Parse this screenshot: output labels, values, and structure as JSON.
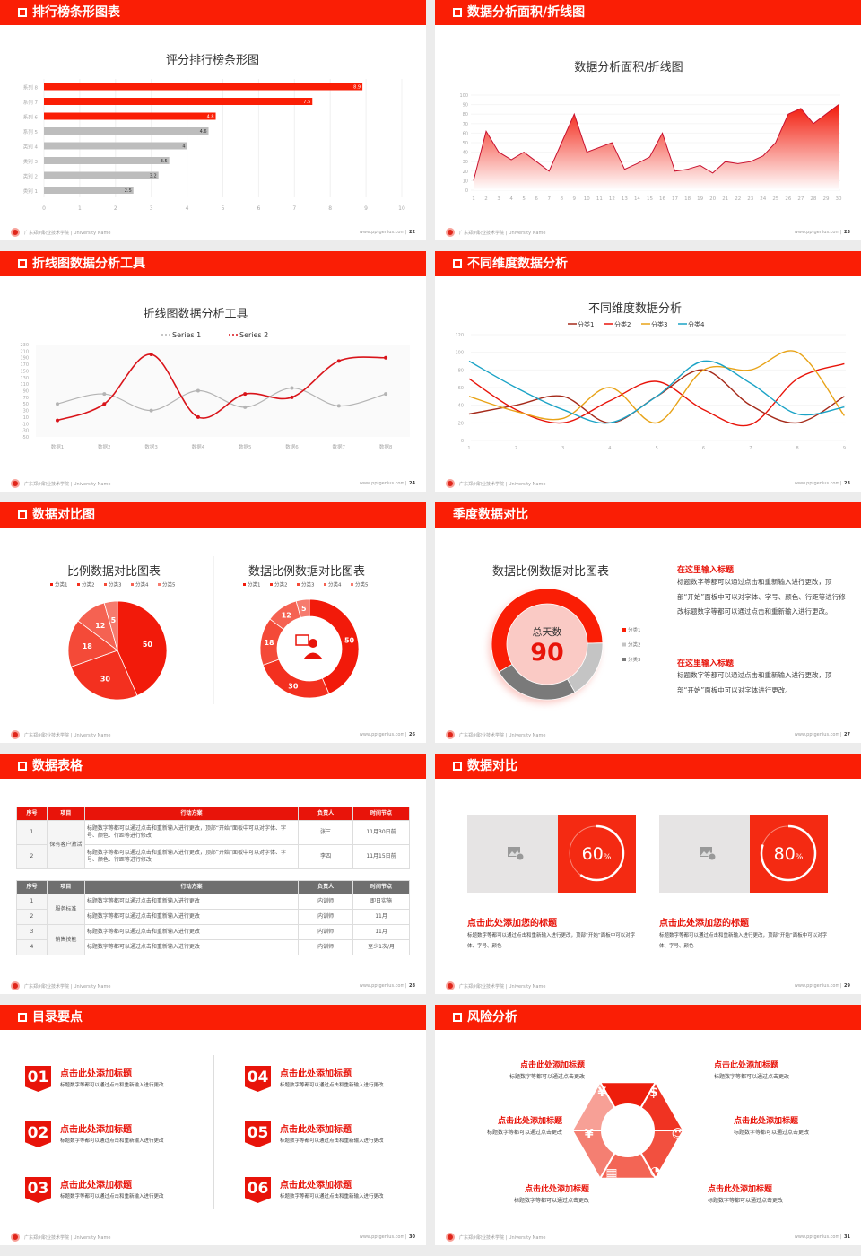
{
  "colors": {
    "accent": "#fa1e05",
    "grey": "#bdbdbd",
    "dark_grey": "#7a7a7a"
  },
  "footer": {
    "school": "广东郑州职业技术学院 | University Name",
    "site": "www.pptgenius.com"
  },
  "slides": [
    {
      "header": "排行榜条形图表",
      "page": "22"
    },
    {
      "header": "数据分析面积/折线图",
      "page": "23"
    },
    {
      "header": "折线图数据分析工具",
      "page": "24"
    },
    {
      "header": "不同维度数据分析",
      "page": "23"
    },
    {
      "header": "数据对比图",
      "page": "26"
    },
    {
      "header": "季度数据对比",
      "page": "27",
      "blocks": [
        {
          "title": "在这里输入标题",
          "text": "标题数字等都可以通过点击和重新输入进行更改，顶部“开始”面板中可以对字体、字号、颜色、行距等进行修改标题数字等都可以通过点击和重新输入进行更改。"
        },
        {
          "title": "在这里输入标题",
          "text": "标题数字等都可以通过点击和重新输入进行更改，顶部“开始”面板中可以对字体进行更改。"
        }
      ]
    },
    {
      "header": "数据表格",
      "page": "28",
      "table1": {
        "columns": [
          "序号",
          "项目",
          "行动方案",
          "负责人",
          "时间节点"
        ],
        "group": "保有客户激活",
        "rows": [
          [
            "1",
            "标题数字等都可以通过点击和重新输入进行更改，顶部“开始”面板中可以对字体、字号、颜色、行距等进行修改",
            "张三",
            "11月30日前"
          ],
          [
            "2",
            "标题数字等都可以通过点击和重新输入进行更改，顶部“开始”面板中可以对字体、字号、颜色、行距等进行修改",
            "李四",
            "11月15日前"
          ]
        ]
      },
      "table2": {
        "columns": [
          "序号",
          "项目",
          "行动方案",
          "负责人",
          "时间节点"
        ],
        "groups": [
          "服务标准",
          "销售技能"
        ],
        "rows": [
          [
            "1",
            "标题数字等都可以通过点击和重新输入进行更改",
            "内训师",
            "即日实施"
          ],
          [
            "2",
            "标题数字等都可以通过点击和重新输入进行更改",
            "内训师",
            "11月"
          ],
          [
            "3",
            "标题数字等都可以通过点击和重新输入进行更改",
            "内训师",
            "11月"
          ],
          [
            "4",
            "标题数字等都可以通过点击和重新输入进行更改",
            "内训师",
            "至少1次/月"
          ]
        ]
      }
    },
    {
      "header": "数据对比",
      "page": "29",
      "cards": [
        {
          "percent": 60,
          "unit": "%",
          "title": "点击此处添加您的标题",
          "text": "标题数字等都可以通过点击和重新输入进行更改，顶部“开始”面板中可以对字体、字号、颜色",
          "icon": "image-add-icon"
        },
        {
          "percent": 80,
          "unit": "%",
          "title": "点击此处添加您的标题",
          "text": "标题数字等都可以通过点击和重新输入进行更改，顶部“开始”面板中可以对字体、字号、颜色",
          "icon": "image-add-icon"
        }
      ]
    },
    {
      "header": "目录要点",
      "page": "30",
      "items": [
        {
          "num": "01",
          "title": "点击此处添加标题",
          "text": "标题数字等都可以通过点击和重新输入进行更改"
        },
        {
          "num": "02",
          "title": "点击此处添加标题",
          "text": "标题数字等都可以通过点击和重新输入进行更改"
        },
        {
          "num": "03",
          "title": "点击此处添加标题",
          "text": "标题数字等都可以通过点击和重新输入进行更改"
        },
        {
          "num": "04",
          "title": "点击此处添加标题",
          "text": "标题数字等都可以通过点击和重新输入进行更改"
        },
        {
          "num": "05",
          "title": "点击此处添加标题",
          "text": "标题数字等都可以通过点击和重新输入进行更改"
        },
        {
          "num": "06",
          "title": "点击此处添加标题",
          "text": "标题数字等都可以通过点击和重新输入进行更改"
        }
      ]
    },
    {
      "header": "风险分析",
      "page": "31",
      "items": [
        {
          "title": "点击此处添加标题",
          "text": "标题数字等都可以通过点击更改",
          "icon": "money-bag-icon"
        },
        {
          "title": "点击此处添加标题",
          "text": "标题数字等都可以通过点击更改",
          "icon": "coins-icon"
        },
        {
          "title": "点击此处添加标题",
          "text": "标题数字等都可以通过点击更改",
          "icon": "yen-hand-icon"
        },
        {
          "title": "点击此处添加标题",
          "text": "标题数字等都可以通过点击更改",
          "icon": "people-icon"
        },
        {
          "title": "点击此处添加标题",
          "text": "标题数字等都可以通过点击更改",
          "icon": "building-icon"
        },
        {
          "title": "点击此处添加标题",
          "text": "标题数字等都可以通过点击更改",
          "icon": "pie-chart-icon"
        }
      ]
    }
  ],
  "chart_data": [
    {
      "type": "bar",
      "orientation": "horizontal",
      "title": "评分排行榜条形图",
      "categories": [
        "类别 1",
        "类别 2",
        "类别 3",
        "类别 4",
        "系列 5",
        "系列 6",
        "系列 7",
        "系列 8"
      ],
      "values": [
        2.5,
        3.2,
        3.5,
        4,
        4.6,
        4.8,
        7.5,
        8.9
      ],
      "bar_colors": [
        "#bdbdbd",
        "#bdbdbd",
        "#bdbdbd",
        "#bdbdbd",
        "#bdbdbd",
        "#fa1e05",
        "#fa1e05",
        "#fa1e05"
      ],
      "xlim": [
        0,
        10
      ],
      "xticks": [
        0,
        1,
        2,
        3,
        4,
        5,
        6,
        7,
        8,
        9,
        10
      ],
      "grid": true
    },
    {
      "type": "area",
      "title": "数据分析面积/折线图",
      "x": [
        1,
        2,
        3,
        4,
        5,
        6,
        7,
        8,
        9,
        10,
        11,
        12,
        13,
        14,
        15,
        16,
        17,
        18,
        19,
        20,
        21,
        22,
        23,
        24,
        25,
        26,
        27,
        28,
        29,
        30
      ],
      "values": [
        10,
        62,
        40,
        32,
        40,
        30,
        20,
        50,
        80,
        40,
        45,
        50,
        22,
        28,
        35,
        60,
        20,
        22,
        26,
        18,
        30,
        28,
        30,
        36,
        50,
        80,
        86,
        70,
        80,
        90
      ],
      "ylim": [
        0,
        100
      ],
      "yticks": [
        0,
        10,
        20,
        30,
        40,
        50,
        60,
        70,
        80,
        90,
        100
      ],
      "color": "#e8140a",
      "grid": true
    },
    {
      "type": "line",
      "smooth": true,
      "title": "折线图数据分析工具",
      "categories": [
        "数据1",
        "数据2",
        "数据3",
        "数据4",
        "数据5",
        "数据6",
        "数据7",
        "数据8"
      ],
      "series": [
        {
          "name": "Series 1",
          "values": [
            50,
            80,
            30,
            90,
            40,
            98,
            44,
            80
          ],
          "color": "#b4b4b4"
        },
        {
          "name": "Series 2",
          "values": [
            0,
            50,
            200,
            10,
            80,
            70,
            180,
            190
          ],
          "color": "#d9141a"
        }
      ],
      "ylim": [
        -50,
        230
      ],
      "yticks": [
        -50,
        -30,
        -10,
        10,
        30,
        50,
        70,
        90,
        110,
        130,
        150,
        170,
        190,
        210,
        230
      ],
      "legend": "top"
    },
    {
      "type": "line",
      "smooth": true,
      "title": "不同维度数据分析",
      "x": [
        1,
        2,
        3,
        4,
        5,
        6,
        7,
        8,
        9
      ],
      "series": [
        {
          "name": "分类1",
          "values": [
            30,
            40,
            50,
            20,
            50,
            80,
            40,
            20,
            50
          ],
          "color": "#a52a1a"
        },
        {
          "name": "分类2",
          "values": [
            70,
            35,
            20,
            45,
            67,
            35,
            18,
            70,
            87
          ],
          "color": "#e8140a"
        },
        {
          "name": "分类3",
          "values": [
            50,
            33,
            25,
            60,
            20,
            80,
            80,
            100,
            28
          ],
          "color": "#e8a317"
        },
        {
          "name": "分类4",
          "values": [
            90,
            60,
            35,
            20,
            50,
            90,
            65,
            30,
            38
          ],
          "color": "#1ba3c6"
        }
      ],
      "ylim": [
        0,
        120
      ],
      "yticks": [
        0,
        20,
        40,
        60,
        80,
        100,
        120
      ],
      "legend": "top"
    },
    {
      "type": "pie",
      "title": "比例数据对比图表",
      "categories": [
        "分类1",
        "分类2",
        "分类3",
        "分类4",
        "分类5"
      ],
      "values": [
        50,
        30,
        18,
        12,
        5
      ],
      "colors": [
        "#f21a0a",
        "#f3301f",
        "#f44a38",
        "#f56252",
        "#f67b6e"
      ],
      "legend": "top"
    },
    {
      "type": "pie",
      "donut": true,
      "title": "数据比例数据对比图表",
      "categories": [
        "分类1",
        "分类2",
        "分类3",
        "分类4",
        "分类5"
      ],
      "values": [
        50,
        30,
        18,
        12,
        5
      ],
      "colors": [
        "#f21a0a",
        "#f3301f",
        "#f44a38",
        "#f56252",
        "#f67b6e"
      ],
      "legend": "top",
      "center_icon": "user-chat-icon"
    },
    {
      "type": "pie",
      "donut": true,
      "title": "数据比例数据对比图表",
      "center_label": "总天数",
      "center_value": "90",
      "categories": [
        "分类1",
        "分类2",
        "分类3"
      ],
      "values": [
        58,
        17,
        25
      ],
      "colors": [
        "#fa1e05",
        "#c4c4c4",
        "#7a7a7a"
      ],
      "legend": "right"
    }
  ]
}
